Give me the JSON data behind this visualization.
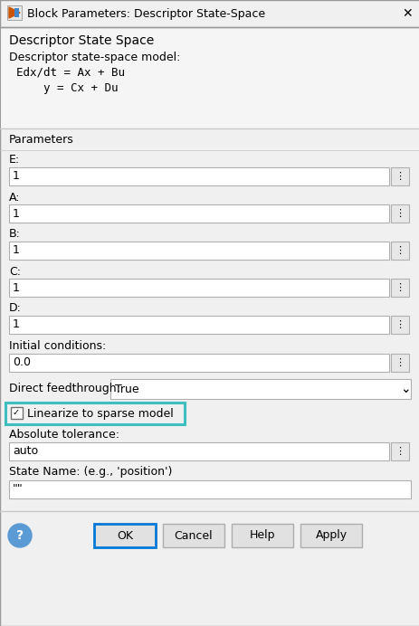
{
  "title_bar_text": "Block Parameters: Descriptor State-Space",
  "dialog_bg": "#f0f0f0",
  "header_bg": "#f0f0f0",
  "section_header": "Descriptor State Space",
  "model_label": "Descriptor state-space model:",
  "eq1": "  Edx/dt = Ax + Bu",
  "eq2": "     y = Cx + Du",
  "params_section": "Parameters",
  "fields": [
    {
      "label": "E:",
      "value": "1"
    },
    {
      "label": "A:",
      "value": "1"
    },
    {
      "label": "B:",
      "value": "1"
    },
    {
      "label": "C:",
      "value": "1"
    },
    {
      "label": "D:",
      "value": "1"
    }
  ],
  "init_cond_label": "Initial conditions:",
  "init_cond_value": "0.0",
  "direct_ft_label": "Direct feedthrough:",
  "direct_ft_value": "True",
  "checkbox_label": "Linearize to sparse model",
  "checkbox_checked": true,
  "checkbox_highlight_color": "#3dbfbf",
  "abs_tol_label": "Absolute tolerance:",
  "abs_tol_value": "auto",
  "state_name_label": "State Name: (e.g., 'position')",
  "state_name_value": "\"\"",
  "btn_ok": "OK",
  "btn_cancel": "Cancel",
  "btn_help": "Help",
  "btn_apply": "Apply",
  "input_bg": "#ffffff",
  "input_border": "#b0b0b0",
  "text_color": "#000000",
  "sep_color": "#c8c8c8",
  "btn_bg": "#e1e1e1",
  "btn_border": "#adadad",
  "ok_border": "#0078d7",
  "title_bar_bg": "#f0f0f0",
  "title_bar_border": "#999999"
}
